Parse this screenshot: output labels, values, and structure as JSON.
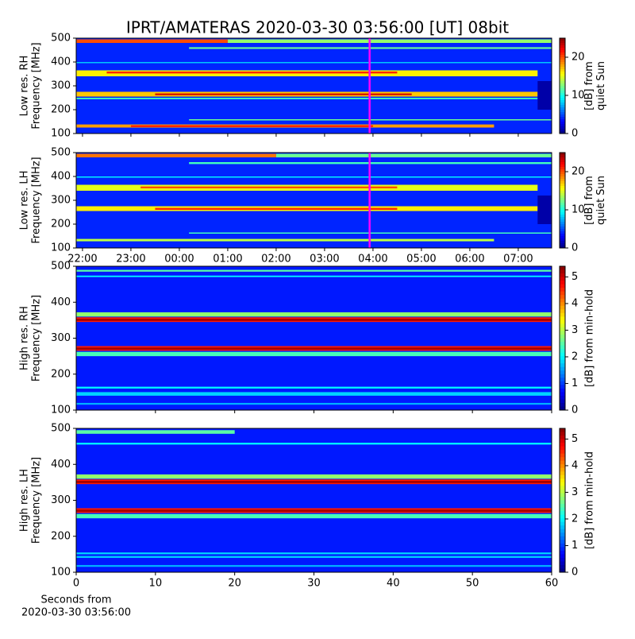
{
  "title": "IPRT/AMATERAS 2020-03-30 03:56:00 [UT]   08bit",
  "chart_data": [
    {
      "type": "heatmap",
      "ylabel": [
        "Low res. RH",
        "Frequency [MHz]"
      ],
      "ylim": [
        100,
        500
      ],
      "yticks": [
        100,
        200,
        300,
        400,
        500
      ],
      "xlim": [
        21.87,
        31.69
      ],
      "marker": 27.93,
      "marker_color": "#ff00ff",
      "background": 4,
      "colorbar_label": [
        "[dB] from",
        "quiet Sun"
      ],
      "clim": [
        0,
        25
      ],
      "cticks": [
        0,
        10,
        20
      ],
      "bands": [
        {
          "freq": [
            480,
            495
          ],
          "x": [
            21.87,
            25
          ],
          "value": 20
        },
        {
          "freq": [
            480,
            495
          ],
          "x": [
            25,
            31.69
          ],
          "value": 13
        },
        {
          "freq": [
            455,
            462
          ],
          "x": [
            24.2,
            31.69
          ],
          "value": 12
        },
        {
          "freq": [
            395,
            400
          ],
          "x": [
            21.87,
            31.69
          ],
          "value": 8
        },
        {
          "freq": [
            340,
            365
          ],
          "x": [
            21.87,
            31.4
          ],
          "value": 16
        },
        {
          "freq": [
            352,
            360
          ],
          "x": [
            22.5,
            28.5
          ],
          "value": 21
        },
        {
          "freq": [
            255,
            275
          ],
          "x": [
            21.87,
            31.4
          ],
          "value": 17
        },
        {
          "freq": [
            261,
            268
          ],
          "x": [
            23.5,
            28.8
          ],
          "value": 23
        },
        {
          "freq": [
            244,
            250
          ],
          "x": [
            21.87,
            31.4
          ],
          "value": 11
        },
        {
          "freq": [
            155,
            160
          ],
          "x": [
            24.2,
            31.69
          ],
          "value": 12
        },
        {
          "freq": [
            125,
            138
          ],
          "x": [
            21.87,
            30.5
          ],
          "value": 18
        },
        {
          "freq": [
            128,
            134
          ],
          "x": [
            23,
            28
          ],
          "value": 22
        },
        {
          "freq": [
            200,
            320
          ],
          "x": [
            31.4,
            31.69
          ],
          "value": 1
        }
      ]
    },
    {
      "type": "heatmap",
      "ylabel": [
        "Low res. LH",
        "Frequency [MHz]"
      ],
      "ylim": [
        100,
        500
      ],
      "yticks": [
        100,
        200,
        300,
        400,
        500
      ],
      "xlim": [
        21.87,
        31.69
      ],
      "marker": 27.93,
      "marker_color": "#ff00ff",
      "background": 4,
      "colorbar_label": [
        "[dB] from",
        "quiet Sun"
      ],
      "clim": [
        0,
        25
      ],
      "cticks": [
        0,
        10,
        20
      ],
      "xticks": [
        {
          "value": 22,
          "label": "22:00"
        },
        {
          "value": 23,
          "label": "23:00"
        },
        {
          "value": 24,
          "label": "00:00"
        },
        {
          "value": 25,
          "label": "01:00"
        },
        {
          "value": 26,
          "label": "02:00"
        },
        {
          "value": 27,
          "label": "03:00"
        },
        {
          "value": 28,
          "label": "04:00"
        },
        {
          "value": 29,
          "label": "05:00"
        },
        {
          "value": 30,
          "label": "06:00"
        },
        {
          "value": 31,
          "label": "07:00"
        }
      ],
      "bands": [
        {
          "freq": [
            480,
            495
          ],
          "x": [
            21.87,
            26
          ],
          "value": 19
        },
        {
          "freq": [
            480,
            495
          ],
          "x": [
            26,
            31.69
          ],
          "value": 12
        },
        {
          "freq": [
            452,
            460
          ],
          "x": [
            24.2,
            31.69
          ],
          "value": 11
        },
        {
          "freq": [
            395,
            400
          ],
          "x": [
            21.87,
            31.69
          ],
          "value": 9
        },
        {
          "freq": [
            340,
            365
          ],
          "x": [
            21.87,
            31.4
          ],
          "value": 15
        },
        {
          "freq": [
            350,
            358
          ],
          "x": [
            23.2,
            28.5
          ],
          "value": 20
        },
        {
          "freq": [
            255,
            275
          ],
          "x": [
            21.87,
            31.4
          ],
          "value": 16
        },
        {
          "freq": [
            260,
            268
          ],
          "x": [
            23.5,
            28.5
          ],
          "value": 21
        },
        {
          "freq": [
            160,
            165
          ],
          "x": [
            24.2,
            31.69
          ],
          "value": 11
        },
        {
          "freq": [
            128,
            138
          ],
          "x": [
            21.87,
            30.5
          ],
          "value": 14
        },
        {
          "freq": [
            200,
            320
          ],
          "x": [
            31.4,
            31.69
          ],
          "value": 1
        }
      ]
    },
    {
      "type": "heatmap",
      "ylabel": [
        "High res. RH",
        "Frequency [MHz]"
      ],
      "ylim": [
        100,
        500
      ],
      "yticks": [
        100,
        200,
        300,
        400,
        500
      ],
      "xlim": [
        0,
        60
      ],
      "background": 0.8,
      "colorbar_label": [
        "[dB] from min-hold"
      ],
      "clim": [
        0,
        5.4
      ],
      "cticks": [
        0,
        1,
        2,
        3,
        4,
        5
      ],
      "bands": [
        {
          "freq": [
            485,
            490
          ],
          "x": [
            0,
            60
          ],
          "value": 2.5
        },
        {
          "freq": [
            470,
            474
          ],
          "x": [
            0,
            60
          ],
          "value": 2
        },
        {
          "freq": [
            360,
            372
          ],
          "x": [
            0,
            60
          ],
          "value": 2.8
        },
        {
          "freq": [
            345,
            358
          ],
          "x": [
            0,
            60
          ],
          "value": 4.6
        },
        {
          "freq": [
            348,
            354
          ],
          "x": [
            0,
            60
          ],
          "value": 5.2
        },
        {
          "freq": [
            265,
            278
          ],
          "x": [
            0,
            60
          ],
          "value": 4.6
        },
        {
          "freq": [
            268,
            274
          ],
          "x": [
            0,
            60
          ],
          "value": 5.2
        },
        {
          "freq": [
            250,
            262
          ],
          "x": [
            0,
            60
          ],
          "value": 2.4
        },
        {
          "freq": [
            160,
            165
          ],
          "x": [
            0,
            60
          ],
          "value": 2
        },
        {
          "freq": [
            140,
            150
          ],
          "x": [
            0,
            60
          ],
          "value": 1.8
        },
        {
          "freq": [
            115,
            120
          ],
          "x": [
            0,
            60
          ],
          "value": 1.6
        }
      ]
    },
    {
      "type": "heatmap",
      "ylabel": [
        "High res. LH",
        "Frequency [MHz]"
      ],
      "ylim": [
        100,
        500
      ],
      "yticks": [
        100,
        200,
        300,
        400,
        500
      ],
      "xlim": [
        0,
        60
      ],
      "background": 0.8,
      "colorbar_label": [
        "[dB] from min-hold"
      ],
      "clim": [
        0,
        5.4
      ],
      "cticks": [
        0,
        1,
        2,
        3,
        4,
        5
      ],
      "xticks": [
        0,
        10,
        20,
        30,
        40,
        50,
        60
      ],
      "xlabel": [
        "Seconds from",
        "2020-03-30 03:56:00"
      ],
      "bands": [
        {
          "freq": [
            485,
            495
          ],
          "x": [
            0,
            20
          ],
          "value": 2.5
        },
        {
          "freq": [
            455,
            460
          ],
          "x": [
            0,
            60
          ],
          "value": 2
        },
        {
          "freq": [
            360,
            372
          ],
          "x": [
            0,
            60
          ],
          "value": 2.8
        },
        {
          "freq": [
            345,
            358
          ],
          "x": [
            0,
            60
          ],
          "value": 4.6
        },
        {
          "freq": [
            348,
            354
          ],
          "x": [
            0,
            60
          ],
          "value": 5.2
        },
        {
          "freq": [
            265,
            278
          ],
          "x": [
            0,
            60
          ],
          "value": 4.6
        },
        {
          "freq": [
            268,
            274
          ],
          "x": [
            0,
            60
          ],
          "value": 5.2
        },
        {
          "freq": [
            250,
            262
          ],
          "x": [
            0,
            60
          ],
          "value": 2.4
        },
        {
          "freq": [
            150,
            155
          ],
          "x": [
            0,
            60
          ],
          "value": 1.8
        },
        {
          "freq": [
            140,
            145
          ],
          "x": [
            0,
            60
          ],
          "value": 1.8
        },
        {
          "freq": [
            115,
            120
          ],
          "x": [
            0,
            60
          ],
          "value": 1.6
        }
      ]
    }
  ]
}
